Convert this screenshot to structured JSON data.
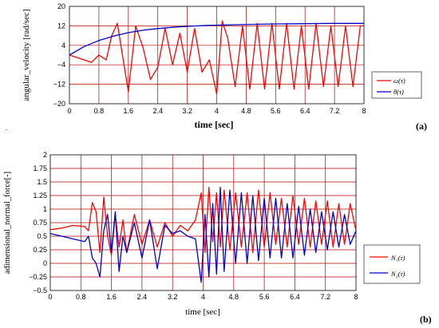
{
  "chart_data": [
    {
      "type": "line",
      "panel_label": "(a)",
      "xlabel": "time [sec]",
      "ylabel": "angular_velocity [rad/sec]",
      "xlim": [
        0,
        8
      ],
      "ylim": [
        -20,
        20
      ],
      "x_ticks": [
        "0",
        "0.8",
        "1.6",
        "2.4",
        "3.2",
        "4",
        "4.8",
        "5.6",
        "6.4",
        "7.2",
        "8"
      ],
      "y_ticks": [
        "20",
        "12",
        "4",
        "−4",
        "−12",
        "−20"
      ],
      "grid": true,
      "legend_position": "right",
      "series": [
        {
          "name": "ω(τ)",
          "color": "#ff0000",
          "x": [
            0,
            0.2,
            0.4,
            0.6,
            0.8,
            1.0,
            1.15,
            1.3,
            1.45,
            1.6,
            1.8,
            2.0,
            2.2,
            2.4,
            2.6,
            2.8,
            3.0,
            3.2,
            3.4,
            3.6,
            3.8,
            4.0,
            4.15,
            4.3,
            4.5,
            4.7,
            4.9,
            5.1,
            5.3,
            5.5,
            5.7,
            5.9,
            6.1,
            6.3,
            6.5,
            6.7,
            6.9,
            7.1,
            7.3,
            7.5,
            7.7,
            7.9,
            8.0
          ],
          "y": [
            0,
            -1,
            -2,
            -3,
            0,
            -2,
            8,
            13,
            -1,
            -15,
            12,
            3,
            -10,
            -5,
            11,
            -4,
            9,
            -7,
            11,
            -7,
            -2,
            -16,
            14,
            7,
            -13,
            12,
            -14,
            13,
            -14,
            13,
            -14,
            13,
            -14,
            12,
            -14,
            13,
            -13,
            12,
            -13,
            12,
            -13,
            12,
            12
          ]
        },
        {
          "name": "θ(τ)",
          "color": "#0000cc",
          "x": [
            0,
            0.4,
            0.8,
            1.2,
            1.6,
            2.0,
            2.4,
            2.8,
            3.2,
            3.6,
            4.0,
            4.8,
            5.6,
            6.4,
            7.2,
            8.0
          ],
          "y": [
            0,
            3.5,
            6.0,
            7.8,
            9.2,
            10.2,
            10.9,
            11.4,
            11.8,
            12.1,
            12.3,
            12.6,
            12.8,
            12.9,
            13.0,
            13.0
          ]
        }
      ]
    },
    {
      "type": "line",
      "panel_label": "(b)",
      "xlabel": "time [sec]",
      "ylabel": "adimensional_normal_force[-]",
      "xlim": [
        0,
        8
      ],
      "ylim": [
        -0.5,
        2
      ],
      "x_ticks": [
        "0",
        "0.8",
        "1.6",
        "2.4",
        "3.2",
        "4",
        "4.8",
        "5.6",
        "6.4",
        "7.2",
        "8"
      ],
      "y_ticks": [
        "2",
        "1.75",
        "1.5",
        "1.25",
        "1",
        "0.75",
        "0.5",
        "0.25",
        "0",
        "−0.25",
        "−0.5"
      ],
      "grid": true,
      "legend_position": "right",
      "series": [
        {
          "name": "N₁(τ)",
          "color": "#ff0000",
          "x": [
            0,
            0.3,
            0.6,
            0.9,
            1.0,
            1.1,
            1.2,
            1.3,
            1.4,
            1.5,
            1.6,
            1.7,
            1.8,
            1.9,
            2.0,
            2.2,
            2.4,
            2.6,
            2.8,
            3.0,
            3.2,
            3.4,
            3.6,
            3.8,
            3.95,
            4.05,
            4.15,
            4.25,
            4.35,
            4.45,
            4.55,
            4.7,
            4.85,
            5.0,
            5.15,
            5.3,
            5.45,
            5.6,
            5.75,
            5.9,
            6.05,
            6.2,
            6.35,
            6.5,
            6.65,
            6.8,
            6.95,
            7.1,
            7.25,
            7.4,
            7.55,
            7.7,
            7.85,
            8.0
          ],
          "y": [
            0.62,
            0.65,
            0.7,
            0.68,
            0.6,
            1.12,
            0.95,
            0.2,
            1.22,
            0.5,
            0.15,
            0.9,
            0.3,
            0.8,
            0.2,
            0.9,
            0.35,
            0.8,
            0.3,
            0.75,
            0.5,
            0.7,
            0.6,
            0.8,
            1.3,
            0.2,
            1.4,
            0.4,
            1.3,
            0.3,
            1.35,
            0.25,
            1.3,
            0.3,
            1.3,
            0.2,
            1.35,
            0.3,
            1.3,
            0.35,
            1.2,
            0.3,
            1.25,
            0.35,
            1.2,
            0.3,
            1.15,
            0.35,
            1.15,
            0.3,
            1.1,
            0.35,
            1.1,
            0.6
          ]
        },
        {
          "name": "N₂(τ)",
          "color": "#0000cc",
          "x": [
            0,
            0.3,
            0.6,
            0.9,
            1.0,
            1.1,
            1.2,
            1.3,
            1.4,
            1.5,
            1.6,
            1.7,
            1.8,
            1.9,
            2.0,
            2.2,
            2.4,
            2.6,
            2.8,
            3.0,
            3.2,
            3.4,
            3.6,
            3.8,
            3.95,
            4.05,
            4.15,
            4.25,
            4.35,
            4.45,
            4.55,
            4.7,
            4.85,
            5.0,
            5.15,
            5.3,
            5.45,
            5.6,
            5.75,
            5.9,
            6.05,
            6.2,
            6.35,
            6.5,
            6.65,
            6.8,
            6.95,
            7.1,
            7.25,
            7.4,
            7.55,
            7.7,
            7.85,
            8.0
          ],
          "y": [
            0.55,
            0.5,
            0.45,
            0.4,
            0.5,
            0.1,
            0.0,
            -0.25,
            0.6,
            0.9,
            0.2,
            0.95,
            -0.15,
            0.5,
            0.2,
            0.75,
            0.1,
            0.8,
            -0.1,
            0.7,
            0.55,
            0.6,
            0.5,
            0.45,
            -0.35,
            0.9,
            -0.25,
            1.1,
            -0.2,
            1.4,
            -0.15,
            1.35,
            0.0,
            1.3,
            0.0,
            1.25,
            0.05,
            1.2,
            0.1,
            1.2,
            0.1,
            1.1,
            0.1,
            1.05,
            0.15,
            1.0,
            0.2,
            0.95,
            0.25,
            0.95,
            0.3,
            0.9,
            0.35,
            0.6
          ]
        }
      ]
    }
  ]
}
